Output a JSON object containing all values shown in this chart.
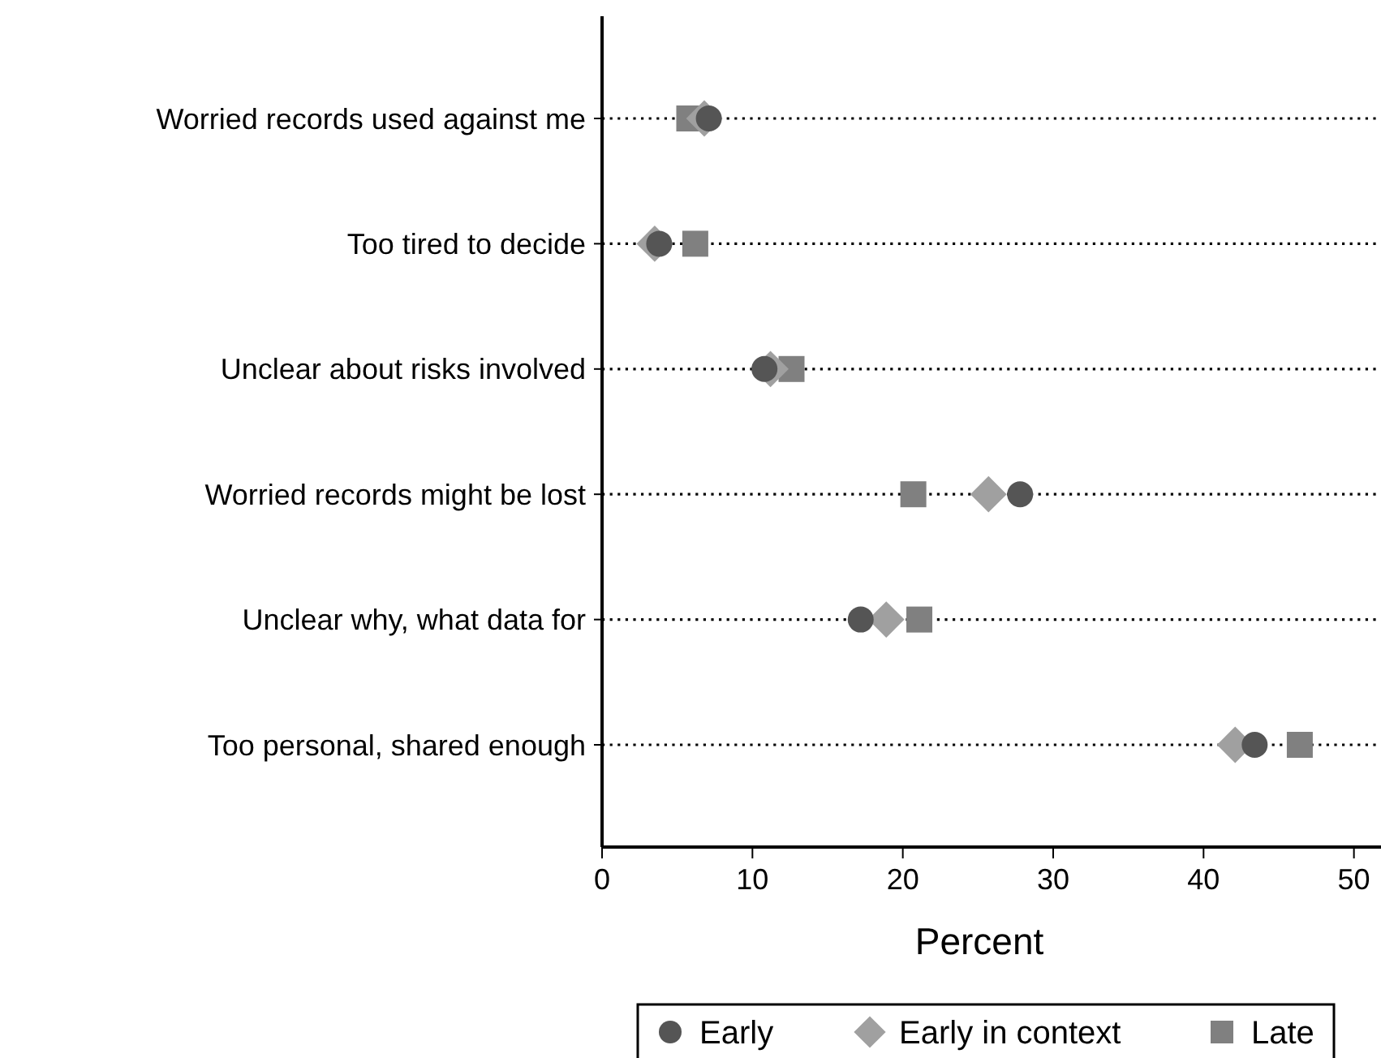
{
  "chart_data": {
    "type": "scatter",
    "orientation": "horizontal",
    "xlabel": "Percent",
    "categories": [
      "Worried records used against me",
      "Too tired to decide",
      "Unclear about risks involved",
      "Worried records might be lost",
      "Unclear why, what data for",
      "Too personal, shared enough"
    ],
    "series": [
      {
        "name": "Early",
        "color": "#555555",
        "marker": "circle",
        "values": [
          7.1,
          3.8,
          10.8,
          27.8,
          17.2,
          43.4
        ]
      },
      {
        "name": "Early in context",
        "color": "#a0a0a0",
        "marker": "diamond",
        "values": [
          6.8,
          3.5,
          11.2,
          25.7,
          18.9,
          42.1
        ]
      },
      {
        "name": "Late",
        "color": "#808080",
        "marker": "square",
        "values": [
          5.8,
          6.2,
          12.6,
          20.7,
          21.1,
          46.4
        ]
      }
    ],
    "xlim": [
      0,
      51.8
    ],
    "xticks": [
      0,
      10,
      20,
      30,
      40,
      50
    ],
    "grid": "y",
    "legend": "bottom"
  }
}
